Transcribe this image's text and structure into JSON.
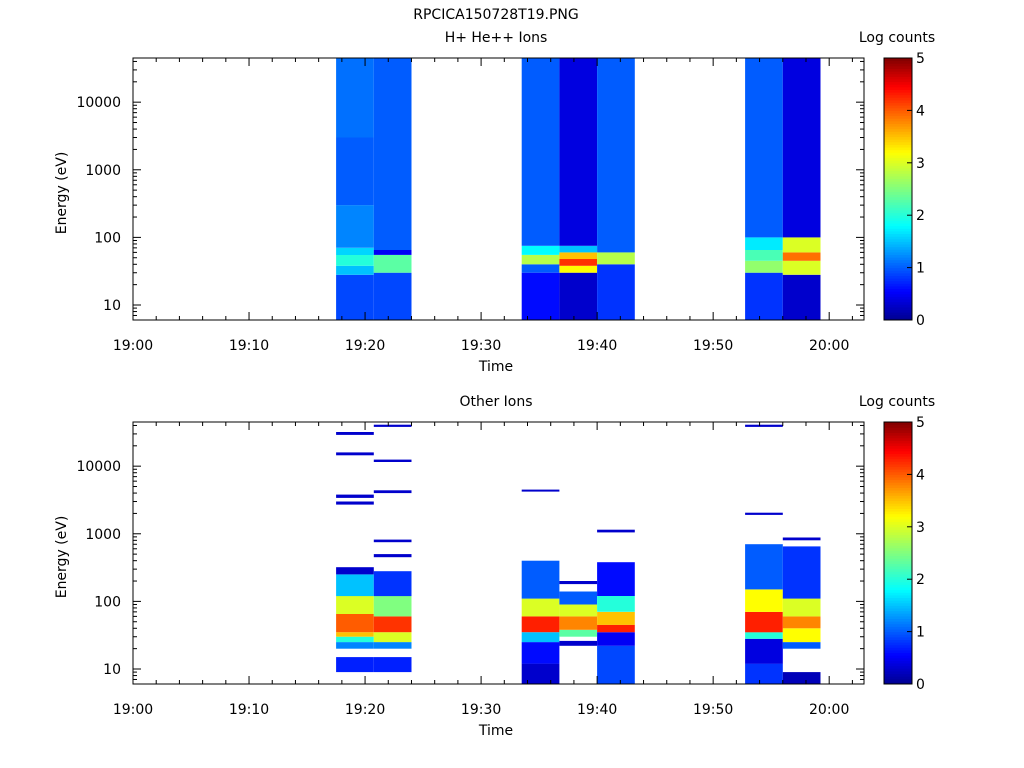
{
  "figure_title": "RPCICA150728T19.PNG",
  "colors": {
    "background": "#ffffff",
    "axis": "#000000",
    "colormap": [
      "#00008f",
      "#0000ff",
      "#00ffff",
      "#ffff00",
      "#ff0000",
      "#800000"
    ]
  },
  "chart_data": [
    {
      "type": "heatmap",
      "title": "H+ He++ Ions",
      "xlabel": "Time",
      "ylabel": "Energy (eV)",
      "yscale": "log",
      "xlim": [
        "19:00",
        "20:03"
      ],
      "ylim": [
        6,
        45000
      ],
      "x_ticks": [
        "19:00",
        "19:10",
        "19:20",
        "19:30",
        "19:40",
        "19:50",
        "20:00"
      ],
      "y_ticks": [
        "10",
        "100",
        "1000",
        "10000"
      ],
      "colorbar": {
        "label": "Log counts",
        "range": [
          0,
          5
        ],
        "ticks": [
          "0",
          "1",
          "2",
          "3",
          "4",
          "5"
        ]
      },
      "grid": false,
      "columns": [
        {
          "start": "19:17:30",
          "end": "19:20:45",
          "bins": [
            {
              "e_low": 6,
              "e_high": 28,
              "value": 0.9
            },
            {
              "e_low": 28,
              "e_high": 38,
              "value": 1.5
            },
            {
              "e_low": 38,
              "e_high": 55,
              "value": 2.0
            },
            {
              "e_low": 55,
              "e_high": 70,
              "value": 1.6
            },
            {
              "e_low": 70,
              "e_high": 300,
              "value": 1.2
            },
            {
              "e_low": 300,
              "e_high": 3000,
              "value": 1.0
            },
            {
              "e_low": 3000,
              "e_high": 45000,
              "value": 1.1
            }
          ]
        },
        {
          "start": "19:20:45",
          "end": "19:24:00",
          "bins": [
            {
              "e_low": 6,
              "e_high": 30,
              "value": 0.9
            },
            {
              "e_low": 30,
              "e_high": 55,
              "value": 2.3
            },
            {
              "e_low": 55,
              "e_high": 65,
              "value": 0.5
            },
            {
              "e_low": 65,
              "e_high": 45000,
              "value": 1.0
            }
          ]
        },
        {
          "start": "19:33:30",
          "end": "19:36:45",
          "bins": [
            {
              "e_low": 6,
              "e_high": 30,
              "value": 0.6
            },
            {
              "e_low": 30,
              "e_high": 40,
              "value": 1.0
            },
            {
              "e_low": 40,
              "e_high": 55,
              "value": 2.8
            },
            {
              "e_low": 55,
              "e_high": 75,
              "value": 1.8
            },
            {
              "e_low": 75,
              "e_high": 45000,
              "value": 1.0
            }
          ]
        },
        {
          "start": "19:36:45",
          "end": "19:40:00",
          "bins": [
            {
              "e_low": 6,
              "e_high": 30,
              "value": 0.3
            },
            {
              "e_low": 30,
              "e_high": 38,
              "value": 3.2
            },
            {
              "e_low": 38,
              "e_high": 48,
              "value": 4.2
            },
            {
              "e_low": 48,
              "e_high": 60,
              "value": 3.5
            },
            {
              "e_low": 60,
              "e_high": 75,
              "value": 1.5
            },
            {
              "e_low": 75,
              "e_high": 45000,
              "value": 0.4
            }
          ]
        },
        {
          "start": "19:40:00",
          "end": "19:43:15",
          "bins": [
            {
              "e_low": 6,
              "e_high": 40,
              "value": 0.8
            },
            {
              "e_low": 40,
              "e_high": 60,
              "value": 2.8
            },
            {
              "e_low": 60,
              "e_high": 45000,
              "value": 1.0
            }
          ]
        },
        {
          "start": "19:52:45",
          "end": "19:56:00",
          "bins": [
            {
              "e_low": 6,
              "e_high": 30,
              "value": 0.8
            },
            {
              "e_low": 30,
              "e_high": 45,
              "value": 2.6
            },
            {
              "e_low": 45,
              "e_high": 65,
              "value": 2.2
            },
            {
              "e_low": 65,
              "e_high": 100,
              "value": 1.7
            },
            {
              "e_low": 100,
              "e_high": 45000,
              "value": 1.0
            }
          ]
        },
        {
          "start": "19:56:00",
          "end": "19:59:15",
          "bins": [
            {
              "e_low": 6,
              "e_high": 28,
              "value": 0.3
            },
            {
              "e_low": 28,
              "e_high": 45,
              "value": 3.0
            },
            {
              "e_low": 45,
              "e_high": 60,
              "value": 3.9
            },
            {
              "e_low": 60,
              "e_high": 100,
              "value": 3.0
            },
            {
              "e_low": 100,
              "e_high": 45000,
              "value": 0.4
            }
          ]
        }
      ]
    },
    {
      "type": "heatmap",
      "title": "Other Ions",
      "xlabel": "Time",
      "ylabel": "Energy (eV)",
      "yscale": "log",
      "xlim": [
        "19:00",
        "20:03"
      ],
      "ylim": [
        6,
        45000
      ],
      "x_ticks": [
        "19:00",
        "19:10",
        "19:20",
        "19:30",
        "19:40",
        "19:50",
        "20:00"
      ],
      "y_ticks": [
        "10",
        "100",
        "1000",
        "10000"
      ],
      "colorbar": {
        "label": "Log counts",
        "range": [
          0,
          5
        ],
        "ticks": [
          "0",
          "1",
          "2",
          "3",
          "4",
          "5"
        ]
      },
      "grid": false,
      "columns": [
        {
          "start": "19:17:30",
          "end": "19:20:45",
          "bins": [
            {
              "e_low": 9,
              "e_high": 15,
              "value": 0.7
            },
            {
              "e_low": 20,
              "e_high": 25,
              "value": 1.2
            },
            {
              "e_low": 25,
              "e_high": 30,
              "value": 2.0
            },
            {
              "e_low": 30,
              "e_high": 35,
              "value": 3.5
            },
            {
              "e_low": 35,
              "e_high": 65,
              "value": 4.0
            },
            {
              "e_low": 65,
              "e_high": 120,
              "value": 3.0
            },
            {
              "e_low": 120,
              "e_high": 250,
              "value": 1.5
            },
            {
              "e_low": 250,
              "e_high": 320,
              "value": 0.3
            },
            {
              "e_low": 2700,
              "e_high": 3000,
              "value": 0.3
            },
            {
              "e_low": 3400,
              "e_high": 3800,
              "value": 0.3
            },
            {
              "e_low": 14500,
              "e_high": 16000,
              "value": 0.3
            },
            {
              "e_low": 29000,
              "e_high": 32000,
              "value": 0.3
            }
          ]
        },
        {
          "start": "19:20:45",
          "end": "19:24:00",
          "bins": [
            {
              "e_low": 9,
              "e_high": 15,
              "value": 0.7
            },
            {
              "e_low": 20,
              "e_high": 25,
              "value": 1.2
            },
            {
              "e_low": 25,
              "e_high": 35,
              "value": 3.0
            },
            {
              "e_low": 35,
              "e_high": 60,
              "value": 4.2
            },
            {
              "e_low": 60,
              "e_high": 120,
              "value": 2.5
            },
            {
              "e_low": 120,
              "e_high": 280,
              "value": 0.8
            },
            {
              "e_low": 450,
              "e_high": 500,
              "value": 0.3
            },
            {
              "e_low": 750,
              "e_high": 820,
              "value": 0.3
            },
            {
              "e_low": 4000,
              "e_high": 4400,
              "value": 0.3
            },
            {
              "e_low": 11500,
              "e_high": 12500,
              "value": 0.3
            },
            {
              "e_low": 38000,
              "e_high": 41000,
              "value": 0.3
            }
          ]
        },
        {
          "start": "19:33:30",
          "end": "19:36:45",
          "bins": [
            {
              "e_low": 6,
              "e_high": 12,
              "value": 0.3
            },
            {
              "e_low": 12,
              "e_high": 25,
              "value": 0.6
            },
            {
              "e_low": 25,
              "e_high": 35,
              "value": 1.5
            },
            {
              "e_low": 35,
              "e_high": 60,
              "value": 4.3
            },
            {
              "e_low": 60,
              "e_high": 110,
              "value": 3.0
            },
            {
              "e_low": 110,
              "e_high": 400,
              "value": 1.0
            },
            {
              "e_low": 4200,
              "e_high": 4500,
              "value": 0.3
            }
          ]
        },
        {
          "start": "19:36:45",
          "end": "19:40:00",
          "bins": [
            {
              "e_low": 22,
              "e_high": 26,
              "value": 0.3
            },
            {
              "e_low": 30,
              "e_high": 38,
              "value": 2.3
            },
            {
              "e_low": 38,
              "e_high": 60,
              "value": 3.8
            },
            {
              "e_low": 60,
              "e_high": 90,
              "value": 3.0
            },
            {
              "e_low": 90,
              "e_high": 140,
              "value": 1.0
            },
            {
              "e_low": 180,
              "e_high": 200,
              "value": 0.3
            }
          ]
        },
        {
          "start": "19:40:00",
          "end": "19:43:15",
          "bins": [
            {
              "e_low": 6,
              "e_high": 22,
              "value": 0.9
            },
            {
              "e_low": 22,
              "e_high": 35,
              "value": 0.5
            },
            {
              "e_low": 35,
              "e_high": 45,
              "value": 4.3
            },
            {
              "e_low": 45,
              "e_high": 70,
              "value": 3.5
            },
            {
              "e_low": 70,
              "e_high": 120,
              "value": 2.0
            },
            {
              "e_low": 120,
              "e_high": 380,
              "value": 0.6
            },
            {
              "e_low": 1050,
              "e_high": 1150,
              "value": 0.3
            }
          ]
        },
        {
          "start": "19:52:45",
          "end": "19:56:00",
          "bins": [
            {
              "e_low": 6,
              "e_high": 12,
              "value": 0.8
            },
            {
              "e_low": 12,
              "e_high": 28,
              "value": 0.4
            },
            {
              "e_low": 28,
              "e_high": 35,
              "value": 2.0
            },
            {
              "e_low": 35,
              "e_high": 70,
              "value": 4.3
            },
            {
              "e_low": 70,
              "e_high": 150,
              "value": 3.2
            },
            {
              "e_low": 150,
              "e_high": 700,
              "value": 1.0
            },
            {
              "e_low": 1900,
              "e_high": 2050,
              "value": 0.3
            },
            {
              "e_low": 38000,
              "e_high": 41000,
              "value": 0.3
            }
          ]
        },
        {
          "start": "19:56:00",
          "end": "19:59:15",
          "bins": [
            {
              "e_low": 6,
              "e_high": 9,
              "value": 0.2
            },
            {
              "e_low": 20,
              "e_high": 25,
              "value": 1.0
            },
            {
              "e_low": 25,
              "e_high": 40,
              "value": 3.2
            },
            {
              "e_low": 40,
              "e_high": 60,
              "value": 3.8
            },
            {
              "e_low": 60,
              "e_high": 110,
              "value": 3.0
            },
            {
              "e_low": 110,
              "e_high": 650,
              "value": 0.8
            },
            {
              "e_low": 800,
              "e_high": 880,
              "value": 0.3
            }
          ]
        }
      ]
    }
  ]
}
